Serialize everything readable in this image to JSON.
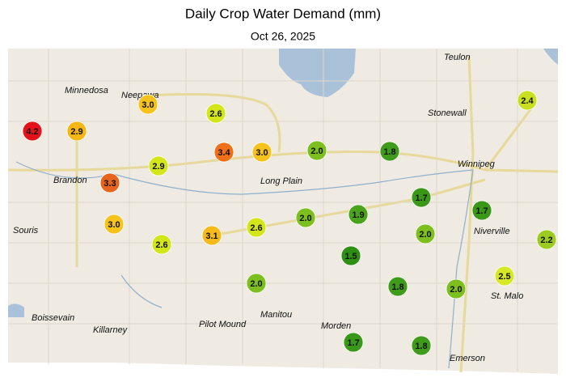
{
  "title": "Daily Crop Water Demand (mm)",
  "subtitle": "Oct 26, 2025",
  "towns": [
    "Teulon",
    "Minnedosa",
    "Neepawa",
    "Stonewall",
    "Winnipeg",
    "Brandon",
    "Long Plain",
    "Souris",
    "Niverville",
    "St. Malo",
    "Boissevain",
    "Killarney",
    "Pilot Mound",
    "Manitou",
    "Morden",
    "Emerson"
  ],
  "stations": {
    "values": [
      4.2,
      2.9,
      3.0,
      2.6,
      3.4,
      3.0,
      2.0,
      1.8,
      2.9,
      3.3,
      3.0,
      2.6,
      3.1,
      2.6,
      2.0,
      1.9,
      1.7,
      1.7,
      2.0,
      2.2,
      2.4,
      1.5,
      2.0,
      1.8,
      2.0,
      2.5,
      1.7,
      1.8
    ],
    "value_labels": [
      "4.2",
      "2.9",
      "3.0",
      "2.6",
      "3.4",
      "3.0",
      "2.0",
      "1.8",
      "2.9",
      "3.3",
      "3.0",
      "2.6",
      "3.1",
      "2.6",
      "2.0",
      "1.9",
      "1.7",
      "1.7",
      "2.0",
      "2.2",
      "2.4",
      "1.5",
      "2.0",
      "1.8",
      "2.0",
      "2.5",
      "1.7",
      "1.8"
    ],
    "colors": [
      "#e5121c",
      "#f6b714",
      "#f6c21c",
      "#d3e61a",
      "#f0701a",
      "#f6c21c",
      "#7cbf1e",
      "#3f9b1a",
      "#d3e61a",
      "#e6641e",
      "#f6c21c",
      "#d3e61a",
      "#f6ba1a",
      "#d3e61a",
      "#7cbf1e",
      "#4ba31c",
      "#3a9818",
      "#3a9818",
      "#7cbf1e",
      "#9ccc20",
      "#c8e020",
      "#2e8f14",
      "#7cbf1e",
      "#3f9b1a",
      "#7cbf1e",
      "#d6e826",
      "#3a9818",
      "#3f9b1a"
    ]
  }
}
